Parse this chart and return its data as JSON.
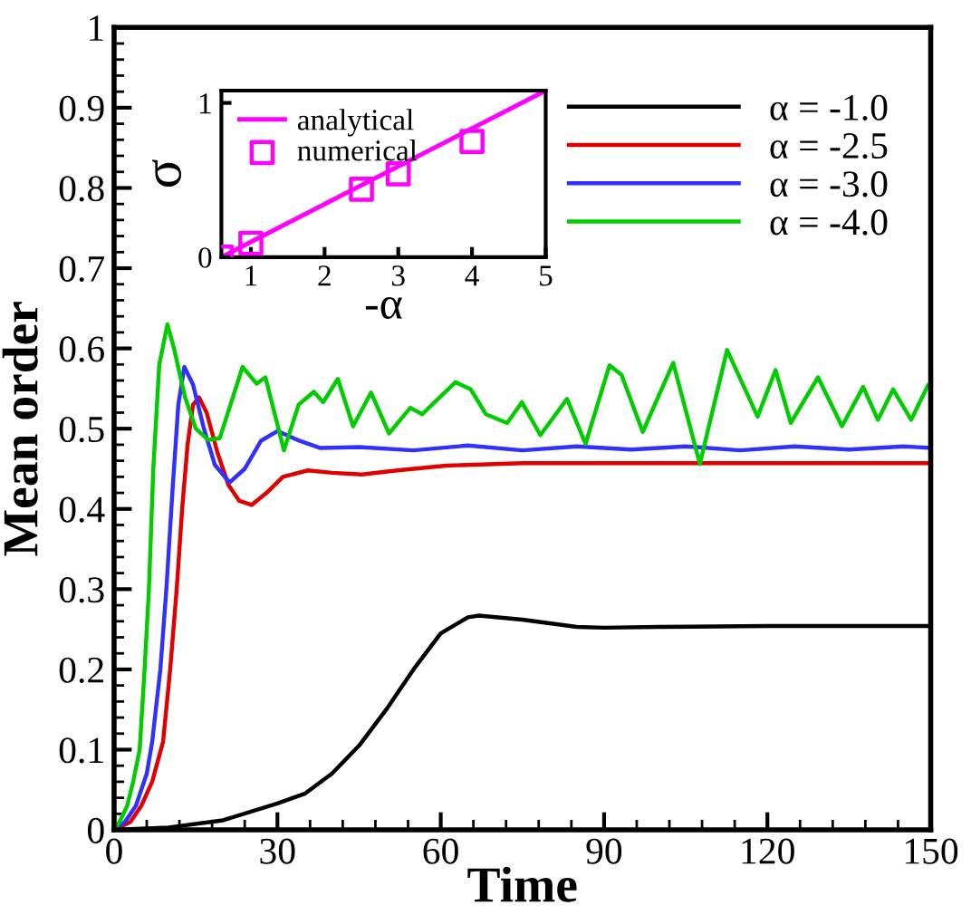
{
  "chart_data": [
    {
      "type": "line",
      "xlabel": "Time",
      "ylabel": "Mean order",
      "xlim": [
        0,
        150
      ],
      "ylim": [
        0,
        1
      ],
      "xticks": [
        0,
        30,
        60,
        90,
        120,
        150
      ],
      "yticks": [
        0,
        0.1,
        0.2,
        0.3,
        0.4,
        0.5,
        0.6,
        0.7,
        0.8,
        0.9,
        1
      ],
      "legend": "top right",
      "grid": false,
      "series": [
        {
          "name": "α = -1.0",
          "color": "#000000",
          "x": [
            0,
            10,
            20,
            30,
            35,
            40,
            45,
            50,
            55,
            60,
            65,
            67,
            75,
            85,
            90,
            100,
            120,
            150
          ],
          "values": [
            0,
            0.003,
            0.012,
            0.033,
            0.045,
            0.07,
            0.105,
            0.15,
            0.2,
            0.245,
            0.265,
            0.267,
            0.262,
            0.253,
            0.252,
            0.253,
            0.254,
            0.254
          ]
        },
        {
          "name": "α = -2.5",
          "color": "#e00000",
          "x": [
            0,
            3,
            5,
            7,
            9,
            10.3,
            11.5,
            12.5,
            13.5,
            14.5,
            15.6,
            17,
            19,
            21,
            23,
            25.3,
            28,
            31,
            35.6,
            40,
            45.5,
            52,
            61,
            75,
            150
          ],
          "values": [
            0,
            0.01,
            0.03,
            0.06,
            0.11,
            0.2,
            0.3,
            0.4,
            0.48,
            0.53,
            0.539,
            0.52,
            0.47,
            0.43,
            0.41,
            0.405,
            0.42,
            0.44,
            0.448,
            0.445,
            0.443,
            0.448,
            0.454,
            0.457,
            0.457
          ]
        },
        {
          "name": "α = -3.0",
          "color": "#3030ff",
          "x": [
            0,
            2,
            4,
            6,
            7,
            8.5,
            9.6,
            10.7,
            11.8,
            12.9,
            14.5,
            16.5,
            18.5,
            21.2,
            24,
            27,
            30,
            34,
            37.8,
            45,
            55,
            65,
            75,
            85,
            95,
            105,
            115,
            125,
            135,
            145,
            150
          ],
          "values": [
            0,
            0.01,
            0.03,
            0.07,
            0.11,
            0.2,
            0.3,
            0.42,
            0.53,
            0.577,
            0.555,
            0.5,
            0.455,
            0.433,
            0.45,
            0.485,
            0.497,
            0.485,
            0.476,
            0.477,
            0.473,
            0.479,
            0.473,
            0.478,
            0.474,
            0.478,
            0.473,
            0.478,
            0.474,
            0.478,
            0.476
          ]
        },
        {
          "name": "α = -4.0",
          "color": "#00cc00",
          "x": [
            0,
            1,
            2.4,
            3.5,
            4.7,
            5.6,
            6.4,
            7.2,
            8.3,
            9.8,
            11,
            13,
            15,
            17.3,
            19.4,
            23.6,
            26.2,
            27.8,
            31.2,
            33.9,
            36.7,
            38.4,
            41.1,
            43.9,
            47.2,
            50.5,
            54.4,
            56.6,
            62.7,
            65.5,
            68.3,
            72.2,
            74.9,
            78.3,
            83.2,
            86.6,
            91,
            93.2,
            97.1,
            102.7,
            107.6,
            112.6,
            118.2,
            121.5,
            124.3,
            129.3,
            133.7,
            137.6,
            140.3,
            143.1,
            146.4,
            149.5
          ],
          "values": [
            0,
            0.01,
            0.03,
            0.06,
            0.1,
            0.2,
            0.3,
            0.45,
            0.58,
            0.63,
            0.6,
            0.54,
            0.5,
            0.486,
            0.488,
            0.577,
            0.556,
            0.564,
            0.473,
            0.53,
            0.546,
            0.533,
            0.562,
            0.503,
            0.545,
            0.494,
            0.526,
            0.518,
            0.558,
            0.549,
            0.518,
            0.507,
            0.533,
            0.492,
            0.537,
            0.481,
            0.579,
            0.567,
            0.496,
            0.582,
            0.456,
            0.598,
            0.515,
            0.573,
            0.507,
            0.564,
            0.503,
            0.552,
            0.511,
            0.549,
            0.511,
            0.554
          ]
        }
      ]
    },
    {
      "type": "line",
      "xlabel": "-α",
      "ylabel": "σ",
      "xlim": [
        0.6,
        5
      ],
      "ylim": [
        0,
        1.08
      ],
      "xticks": [
        1,
        2,
        3,
        4,
        5
      ],
      "yticks": [
        0,
        1
      ],
      "legend": "top left",
      "grid": false,
      "series": [
        {
          "name": "analytical",
          "color": "#ff00ff",
          "x": [
            0.6,
            5
          ],
          "values": [
            0,
            1.08
          ],
          "marker": "none"
        },
        {
          "name": "numerical",
          "type": "scatter",
          "color": "#ff00ff",
          "x": [
            0.6,
            1,
            2.5,
            3,
            4
          ],
          "values": [
            0,
            0.09,
            0.44,
            0.54,
            0.75
          ],
          "marker": "square"
        }
      ]
    }
  ]
}
